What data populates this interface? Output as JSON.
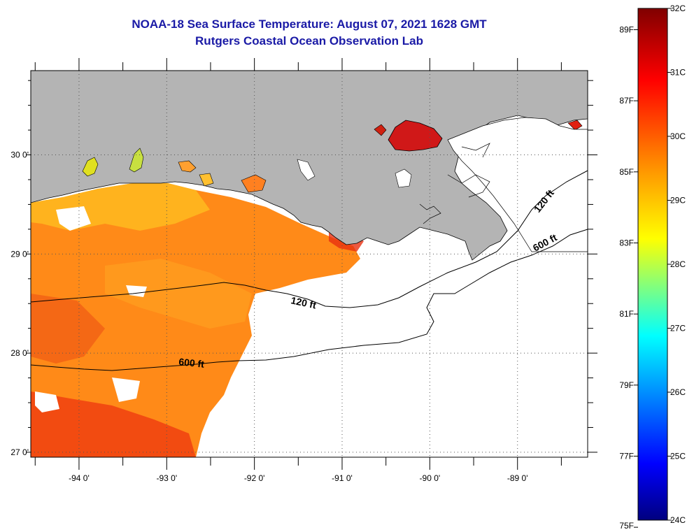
{
  "header": {
    "title": "NOAA-18 Sea Surface Temperature:  August 07, 2021 1628 GMT",
    "subtitle": "Rutgers Coastal Ocean Observation Lab"
  },
  "map": {
    "lon_range": [
      -94.55,
      -88.2
    ],
    "lat_range": [
      26.95,
      30.85
    ],
    "lon_ticks": [
      {
        "value": -94,
        "label": "-94 0'"
      },
      {
        "value": -93,
        "label": "-93 0'"
      },
      {
        "value": -92,
        "label": "-92 0'"
      },
      {
        "value": -91,
        "label": "-91 0'"
      },
      {
        "value": -90,
        "label": "-90 0'"
      },
      {
        "value": -89,
        "label": "-89 0'"
      }
    ],
    "lat_ticks": [
      {
        "value": 30,
        "label": "30 0'"
      },
      {
        "value": 29,
        "label": "29 0'"
      },
      {
        "value": 28,
        "label": "28 0'"
      },
      {
        "value": 27,
        "label": "27 0'"
      }
    ],
    "contour_labels": [
      {
        "text": "120 ft",
        "name": "contour-label-120ft-west"
      },
      {
        "text": "600 ft",
        "name": "contour-label-600ft-west"
      },
      {
        "text": "120 ft",
        "name": "contour-label-120ft-east"
      },
      {
        "text": "600 ft",
        "name": "contour-label-600ft-east"
      }
    ],
    "colors": {
      "land": "#b4b4b4",
      "ocean_no_data": "#ffffff",
      "sst_warm": "#ff7a10",
      "sst_hot": "#e02010"
    }
  },
  "colorbar": {
    "min_c": 24,
    "max_c": 32,
    "celsius_labels": [
      {
        "value": 32,
        "label": "32C"
      },
      {
        "value": 31,
        "label": "31C"
      },
      {
        "value": 30,
        "label": "30C"
      },
      {
        "value": 29,
        "label": "29C"
      },
      {
        "value": 28,
        "label": "28C"
      },
      {
        "value": 27,
        "label": "27C"
      },
      {
        "value": 26,
        "label": "26C"
      },
      {
        "value": 25,
        "label": "25C"
      },
      {
        "value": 24,
        "label": "24C"
      }
    ],
    "fahrenheit_labels": [
      {
        "value": 89,
        "label": "89F"
      },
      {
        "value": 87,
        "label": "87F"
      },
      {
        "value": 85,
        "label": "85F"
      },
      {
        "value": 83,
        "label": "83F"
      },
      {
        "value": 81,
        "label": "81F"
      },
      {
        "value": 79,
        "label": "79F"
      },
      {
        "value": 77,
        "label": "77F"
      },
      {
        "value": 75,
        "label": "75F"
      }
    ]
  }
}
